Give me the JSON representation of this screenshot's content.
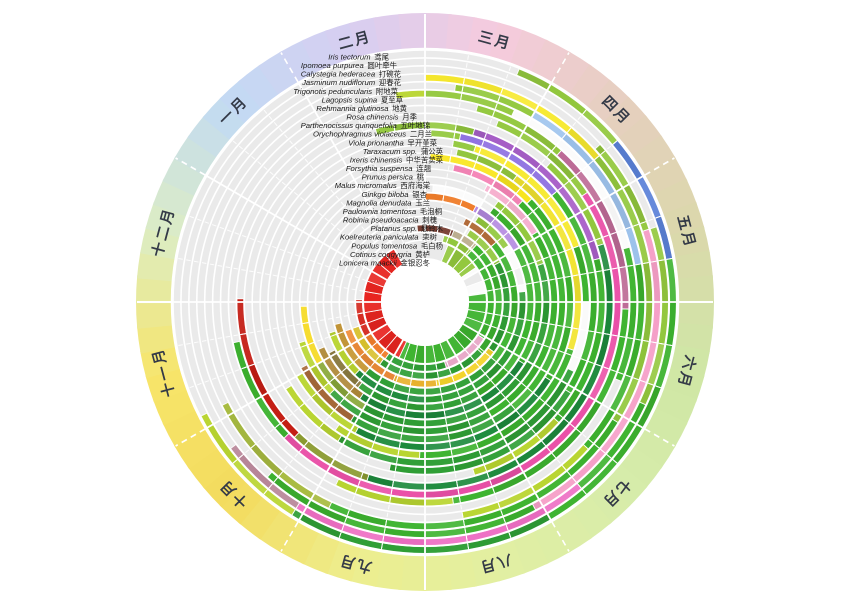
{
  "chart_data": {
    "type": "radial-phenology-wheel",
    "description": "Annual phenology calendar wheel: 12 months arranged clockwise (March at top), 25 plant species drawn as concentric rings (first species = outermost ring). Colored arcs mark leaf-out (greens), flowering (blue/pink/violet/yellow/white), fruiting and autumn coloration (yellow/orange/red/brown); light gray = dormant/absent.",
    "angle_convention": "degrees clockwise from 12 o'clock; 0 = March 1; 30 degrees per month",
    "ring_base_color": "#eaeaea",
    "grid_color": "#ffffff",
    "center_disc_color": "#ffffff",
    "month_label_color": "#343a47",
    "species_label_color": "#1a1a1a",
    "months": [
      {
        "label": "三月",
        "mid_deg": 15,
        "color": "#f5cbdd"
      },
      {
        "label": "四月",
        "mid_deg": 45,
        "color": "#e6cfbf"
      },
      {
        "label": "五月",
        "mid_deg": 75,
        "color": "#dbd8ab"
      },
      {
        "label": "六月",
        "mid_deg": 105,
        "color": "#cfe7a5"
      },
      {
        "label": "七月",
        "mid_deg": 135,
        "color": "#d7ecaa"
      },
      {
        "label": "八月",
        "mid_deg": 165,
        "color": "#e2efa2"
      },
      {
        "label": "九月",
        "mid_deg": 195,
        "color": "#edee8e"
      },
      {
        "label": "十月",
        "mid_deg": 225,
        "color": "#f3db5e"
      },
      {
        "label": "十一月",
        "mid_deg": 255,
        "color": "#f7e56a"
      },
      {
        "label": "十二月",
        "mid_deg": 285,
        "color": "#dcedc4"
      },
      {
        "label": "一月",
        "mid_deg": 315,
        "color": "#c2daf3"
      },
      {
        "label": "二月",
        "mid_deg": 345,
        "color": "#d7cef1"
      }
    ],
    "species": [
      {
        "latin": "Iris tectorum",
        "zh": "鸢尾",
        "arcs": [
          [
            22,
            50,
            "#93c83e"
          ],
          [
            50,
            80,
            "#5b82d8"
          ],
          [
            80,
            150,
            "#3db32f"
          ],
          [
            150,
            212,
            "#2f9e35"
          ],
          [
            212,
            243,
            "#b9d531"
          ]
        ]
      },
      {
        "latin": "Ipomoea purpurea",
        "zh": "圆叶牵牛",
        "arcs": [
          [
            72,
            115,
            "#93c83e"
          ],
          [
            115,
            140,
            "#3db32f"
          ],
          [
            140,
            212,
            "#ee6fc4"
          ],
          [
            212,
            233,
            "#b9889a"
          ]
        ]
      },
      {
        "latin": "Calystegia hederacea",
        "zh": "打碗花",
        "arcs": [
          [
            48,
            72,
            "#93c83e"
          ],
          [
            72,
            152,
            "#f59fc7"
          ],
          [
            152,
            222,
            "#3db32f"
          ]
        ]
      },
      {
        "latin": "Jasminum nudiflorum",
        "zh": "迎春花",
        "arcs": [
          [
            0,
            50,
            "#f7e92e"
          ],
          [
            50,
            122,
            "#93c83e"
          ],
          [
            122,
            205,
            "#3db32f"
          ],
          [
            205,
            243,
            "#a9bc42"
          ]
        ]
      },
      {
        "latin": "Trigonotis peduncularis",
        "zh": "附地菜",
        "arcs": [
          [
            8,
            30,
            "#93c83e"
          ],
          [
            30,
            80,
            "#9fc4ee"
          ],
          [
            80,
            132,
            "#3db32f"
          ],
          [
            132,
            170,
            "#b9d531"
          ]
        ]
      },
      {
        "latin": "Lagopsis supina",
        "zh": "夏至草",
        "arcs": [
          [
            352,
            360,
            "#b9d531"
          ],
          [
            0,
            25,
            "#93c83e"
          ],
          [
            25,
            75,
            "#fbfbfb"
          ],
          [
            75,
            112,
            "#3db32f"
          ]
        ]
      },
      {
        "latin": "Rehmannia glutinosa",
        "zh": "地黄",
        "arcs": [
          [
            15,
            42,
            "#93c83e"
          ],
          [
            42,
            92,
            "#bd6b96"
          ],
          [
            92,
            172,
            "#3db32f"
          ],
          [
            172,
            206,
            "#b9d531"
          ]
        ]
      },
      {
        "latin": "Rosa chinensis",
        "zh": "月季",
        "arcs": [
          [
            22,
            56,
            "#93c83e"
          ],
          [
            56,
            226,
            "#ea51a8"
          ],
          [
            226,
            258,
            "#3db32f"
          ]
        ]
      },
      {
        "latin": "Parthenocissus quinquefolia",
        "zh": "五叶地锦",
        "arcs": [
          [
            42,
            72,
            "#93c83e"
          ],
          [
            72,
            198,
            "#1d8a3c"
          ],
          [
            198,
            224,
            "#8a9a30"
          ],
          [
            224,
            271,
            "#c41e14"
          ]
        ]
      },
      {
        "latin": "Orychophragmus violaceus",
        "zh": "二月兰",
        "arcs": [
          [
            344,
            360,
            "#93c83e"
          ],
          [
            0,
            16,
            "#93c83e"
          ],
          [
            16,
            76,
            "#a85fc8"
          ],
          [
            76,
            132,
            "#3db32f"
          ],
          [
            132,
            164,
            "#b9d531"
          ]
        ]
      },
      {
        "latin": "Viola prionantha",
        "zh": "早开堇菜",
        "arcs": [
          [
            2,
            12,
            "#93c83e"
          ],
          [
            12,
            50,
            "#8d6fe0"
          ],
          [
            50,
            122,
            "#3db32f"
          ],
          [
            122,
            192,
            "#2f9e35"
          ]
        ]
      },
      {
        "latin": "Taraxacum spp.",
        "zh": "蒲公英",
        "arcs": [
          [
            10,
            18,
            "#93c83e"
          ],
          [
            18,
            70,
            "#f7e92e"
          ],
          [
            70,
            90,
            "#3db32f"
          ],
          [
            90,
            115,
            "#fafafa"
          ],
          [
            115,
            212,
            "#2f9e35"
          ],
          [
            212,
            238,
            "#b9d531"
          ]
        ]
      },
      {
        "latin": "Ixeris chinensis",
        "zh": "中华苦荬菜",
        "arcs": [
          [
            12,
            36,
            "#93c83e"
          ],
          [
            36,
            108,
            "#f2e430"
          ],
          [
            108,
            182,
            "#3db32f"
          ],
          [
            182,
            215,
            "#b9d531"
          ]
        ]
      },
      {
        "latin": "Forsythia suspensa",
        "zh": "连翘",
        "arcs": [
          [
            2,
            46,
            "#f9e61e"
          ],
          [
            46,
            122,
            "#3db32f"
          ],
          [
            122,
            208,
            "#1d8a3c"
          ],
          [
            208,
            240,
            "#b9d531"
          ]
        ]
      },
      {
        "latin": "Prunus persica",
        "zh": "桃",
        "arcs": [
          [
            12,
            44,
            "#f584b6"
          ],
          [
            44,
            140,
            "#3db32f"
          ],
          [
            140,
            212,
            "#2f9e35"
          ],
          [
            212,
            242,
            "#a86a3a"
          ]
        ]
      },
      {
        "latin": "Malus micromalus",
        "zh": "西府海棠",
        "arcs": [
          [
            28,
            58,
            "#f6b0cf"
          ],
          [
            58,
            150,
            "#3db32f"
          ],
          [
            150,
            226,
            "#2f9e35"
          ],
          [
            226,
            252,
            "#b9d531"
          ]
        ]
      },
      {
        "latin": "Ginkgo biloba",
        "zh": "银杏",
        "arcs": [
          [
            36,
            72,
            "#93c83e"
          ],
          [
            72,
            210,
            "#2f9e35"
          ],
          [
            210,
            240,
            "#8aa93a"
          ],
          [
            240,
            268,
            "#f5d91e"
          ]
        ]
      },
      {
        "latin": "Magnolia denudata",
        "zh": "玉兰",
        "arcs": [
          [
            4,
            36,
            "#fbfbfb"
          ],
          [
            36,
            122,
            "#3db32f"
          ],
          [
            122,
            214,
            "#1d8a3c"
          ],
          [
            214,
            246,
            "#b08a3a"
          ]
        ]
      },
      {
        "latin": "Paulownia tomentosa",
        "zh": "毛泡桐",
        "arcs": [
          [
            0,
            28,
            "#ef7d2a"
          ],
          [
            28,
            60,
            "#b58ae0"
          ],
          [
            60,
            150,
            "#3db32f"
          ],
          [
            150,
            218,
            "#2f9e35"
          ],
          [
            218,
            242,
            "#8a7a40"
          ]
        ]
      },
      {
        "latin": "Robinia pseudoacacia",
        "zh": "刺槐",
        "arcs": [
          [
            32,
            56,
            "#93c83e"
          ],
          [
            56,
            84,
            "#fbfbfb"
          ],
          [
            84,
            180,
            "#2f9e35"
          ],
          [
            180,
            224,
            "#1d8a3c"
          ],
          [
            224,
            252,
            "#b9d531"
          ]
        ]
      },
      {
        "latin": "Platanus spp.",
        "zh": "悬铃木",
        "arcs": [
          [
            26,
            50,
            "#b06a38"
          ],
          [
            50,
            130,
            "#3db32f"
          ],
          [
            130,
            220,
            "#2f9e35"
          ],
          [
            220,
            256,
            "#c89a3a"
          ]
        ]
      },
      {
        "latin": "Koelreuteria paniculata",
        "zh": "栾树",
        "arcs": [
          [
            32,
            62,
            "#93c83e"
          ],
          [
            62,
            126,
            "#2f9e35"
          ],
          [
            126,
            172,
            "#f3d32a"
          ],
          [
            172,
            202,
            "#e8b02a"
          ],
          [
            202,
            250,
            "#ef8d3a"
          ]
        ]
      },
      {
        "latin": "Populus tomentosa",
        "zh": "毛白杨",
        "arcs": [
          [
            354,
            360,
            "#7a4034"
          ],
          [
            0,
            22,
            "#7a4034"
          ],
          [
            22,
            42,
            "#c8ba9a"
          ],
          [
            42,
            132,
            "#3db32f"
          ],
          [
            132,
            216,
            "#2f9e35"
          ],
          [
            216,
            250,
            "#d8c02e"
          ]
        ]
      },
      {
        "latin": "Cotinus coggygria",
        "zh": "黄栌",
        "arcs": [
          [
            16,
            42,
            "#93c83e"
          ],
          [
            42,
            122,
            "#3db32f"
          ],
          [
            122,
            162,
            "#e8a8c8"
          ],
          [
            162,
            215,
            "#2f9e35"
          ],
          [
            215,
            240,
            "#ef7d2a"
          ],
          [
            240,
            272,
            "#d42a20"
          ]
        ]
      },
      {
        "latin": "Lonicera maackii",
        "zh": "金银忍冬",
        "arcs": [
          [
            22,
            56,
            "#93c83e"
          ],
          [
            56,
            82,
            "#fbfbfb"
          ],
          [
            82,
            205,
            "#3db32f"
          ],
          [
            205,
            330,
            "#e82520"
          ]
        ]
      }
    ]
  }
}
